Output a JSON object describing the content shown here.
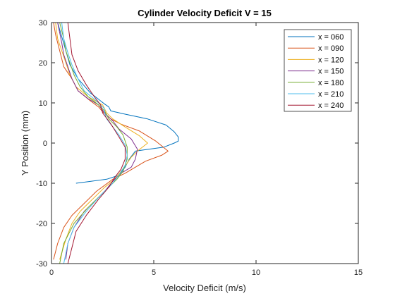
{
  "chart_data": {
    "type": "line",
    "title": "Cylinder Velocity Deficit V = 15",
    "xlabel": "Velocity Deficit (m/s)",
    "ylabel": "Y Position (mm)",
    "xlim": [
      0,
      15
    ],
    "ylim": [
      -30,
      30
    ],
    "xticks": [
      0,
      5,
      10,
      15
    ],
    "xtick_labels": [
      "0",
      "5",
      "10",
      "15"
    ],
    "yticks": [
      -30,
      -20,
      -10,
      0,
      10,
      20,
      30
    ],
    "ytick_labels": [
      "-30",
      "-20",
      "-10",
      "0",
      "10",
      "20",
      "30"
    ],
    "grid": false,
    "legend_position": "top-right",
    "series": [
      {
        "name": "x = 060",
        "color": "#0072BD",
        "points": [
          [
            1.2,
            -10
          ],
          [
            2.7,
            -9
          ],
          [
            3.3,
            -8
          ],
          [
            3.6,
            -6
          ],
          [
            3.8,
            -4
          ],
          [
            4.1,
            -2
          ],
          [
            5.5,
            -1
          ],
          [
            6.0,
            0
          ],
          [
            6.2,
            0.5
          ],
          [
            6.2,
            1.5
          ],
          [
            6.0,
            2.8
          ],
          [
            5.6,
            4.5
          ],
          [
            4.7,
            6.0
          ],
          [
            3.6,
            7.2
          ],
          [
            2.9,
            8.0
          ],
          [
            2.8,
            9.0
          ],
          [
            2.6,
            9.7
          ],
          [
            2.4,
            10.5
          ],
          [
            1.9,
            12.5
          ],
          [
            1.3,
            16
          ],
          [
            0.9,
            19.5
          ],
          [
            0.7,
            23
          ],
          [
            0.5,
            26.5
          ],
          [
            0.3,
            30
          ]
        ]
      },
      {
        "name": "x = 090",
        "color": "#D95319",
        "points": [
          [
            0.1,
            -29
          ],
          [
            0.3,
            -25
          ],
          [
            0.6,
            -21
          ],
          [
            1.0,
            -18
          ],
          [
            1.6,
            -15
          ],
          [
            2.2,
            -12
          ],
          [
            3.0,
            -9
          ],
          [
            3.6,
            -7.5
          ],
          [
            4.6,
            -4.5
          ],
          [
            5.4,
            -3
          ],
          [
            5.7,
            -2
          ],
          [
            5.1,
            0.5
          ],
          [
            4.3,
            3
          ],
          [
            3.4,
            4.7
          ],
          [
            2.9,
            6
          ],
          [
            2.5,
            7.8
          ],
          [
            2.3,
            9
          ],
          [
            1.9,
            10.5
          ],
          [
            1.3,
            13
          ],
          [
            1.0,
            16
          ],
          [
            0.6,
            19
          ],
          [
            0.4,
            23
          ],
          [
            0.2,
            27
          ],
          [
            0.1,
            30
          ]
        ]
      },
      {
        "name": "x = 120",
        "color": "#EDB120",
        "points": [
          [
            0.4,
            -29
          ],
          [
            0.7,
            -24
          ],
          [
            1.0,
            -20
          ],
          [
            1.4,
            -17
          ],
          [
            2.0,
            -14
          ],
          [
            2.6,
            -11
          ],
          [
            3.1,
            -9
          ],
          [
            3.4,
            -7
          ],
          [
            3.7,
            -5
          ],
          [
            3.9,
            -3.5
          ],
          [
            4.2,
            -2
          ],
          [
            4.7,
            0
          ],
          [
            4.3,
            1.8
          ],
          [
            3.6,
            4
          ],
          [
            3.0,
            6
          ],
          [
            2.7,
            7.5
          ],
          [
            2.5,
            9.5
          ],
          [
            1.8,
            11.5
          ],
          [
            1.2,
            14
          ],
          [
            0.9,
            17
          ],
          [
            0.7,
            20
          ],
          [
            0.5,
            23
          ],
          [
            0.3,
            26
          ],
          [
            0.2,
            30
          ]
        ]
      },
      {
        "name": "x = 150",
        "color": "#7E2F8E",
        "points": [
          [
            0.7,
            -29
          ],
          [
            0.8,
            -25
          ],
          [
            1.1,
            -21
          ],
          [
            1.6,
            -17
          ],
          [
            2.2,
            -14
          ],
          [
            2.6,
            -12
          ],
          [
            3.0,
            -9.5
          ],
          [
            3.4,
            -7.5
          ],
          [
            3.9,
            -6
          ],
          [
            4.1,
            -4
          ],
          [
            4.2,
            -1.5
          ],
          [
            3.9,
            1
          ],
          [
            3.3,
            3.5
          ],
          [
            3.0,
            5.5
          ],
          [
            2.6,
            7.5
          ],
          [
            2.3,
            9.5
          ],
          [
            1.8,
            11
          ],
          [
            1.3,
            13
          ],
          [
            1.0,
            16
          ],
          [
            0.8,
            19
          ],
          [
            0.6,
            22
          ],
          [
            0.5,
            25
          ],
          [
            0.4,
            27.5
          ],
          [
            0.3,
            30
          ]
        ]
      },
      {
        "name": "x = 180",
        "color": "#77AC30",
        "points": [
          [
            0.4,
            -30
          ],
          [
            0.6,
            -25
          ],
          [
            1.1,
            -20
          ],
          [
            1.8,
            -16
          ],
          [
            2.4,
            -13
          ],
          [
            2.8,
            -11
          ],
          [
            3.2,
            -9
          ],
          [
            3.5,
            -7
          ],
          [
            3.7,
            -4
          ],
          [
            3.7,
            -1
          ],
          [
            3.5,
            2
          ],
          [
            3.2,
            4
          ],
          [
            2.8,
            6
          ],
          [
            2.6,
            8
          ],
          [
            2.3,
            9.5
          ],
          [
            1.8,
            11.5
          ],
          [
            1.4,
            14
          ],
          [
            1.1,
            17
          ],
          [
            0.9,
            20
          ],
          [
            0.7,
            23
          ],
          [
            0.6,
            26
          ],
          [
            0.4,
            30
          ]
        ]
      },
      {
        "name": "x = 210",
        "color": "#4DBEEE",
        "points": [
          [
            0.6,
            -30
          ],
          [
            0.8,
            -25
          ],
          [
            1.1,
            -21
          ],
          [
            1.7,
            -17
          ],
          [
            2.4,
            -13
          ],
          [
            2.9,
            -10.5
          ],
          [
            3.3,
            -8
          ],
          [
            3.6,
            -5.5
          ],
          [
            3.7,
            -3
          ],
          [
            3.6,
            -0.5
          ],
          [
            3.3,
            2
          ],
          [
            3.0,
            4
          ],
          [
            2.7,
            6
          ],
          [
            2.6,
            7.5
          ],
          [
            2.6,
            8.5
          ],
          [
            2.2,
            10.5
          ],
          [
            1.6,
            13
          ],
          [
            1.3,
            16
          ],
          [
            1.0,
            19.5
          ],
          [
            0.8,
            22.5
          ],
          [
            0.6,
            26
          ],
          [
            0.5,
            30
          ]
        ]
      },
      {
        "name": "x = 240",
        "color": "#A2142F",
        "points": [
          [
            0.8,
            -30
          ],
          [
            1.0,
            -26
          ],
          [
            1.2,
            -22
          ],
          [
            1.7,
            -18
          ],
          [
            2.3,
            -14
          ],
          [
            2.8,
            -11
          ],
          [
            3.1,
            -8.5
          ],
          [
            3.4,
            -6.5
          ],
          [
            3.6,
            -4
          ],
          [
            3.6,
            -1
          ],
          [
            3.3,
            1.5
          ],
          [
            3.0,
            4
          ],
          [
            2.8,
            5.5
          ],
          [
            2.5,
            7.5
          ],
          [
            2.4,
            9.5
          ],
          [
            2.1,
            11.5
          ],
          [
            1.7,
            14.5
          ],
          [
            1.3,
            18
          ],
          [
            1.0,
            22
          ],
          [
            0.9,
            26
          ],
          [
            0.8,
            30
          ]
        ]
      }
    ]
  }
}
